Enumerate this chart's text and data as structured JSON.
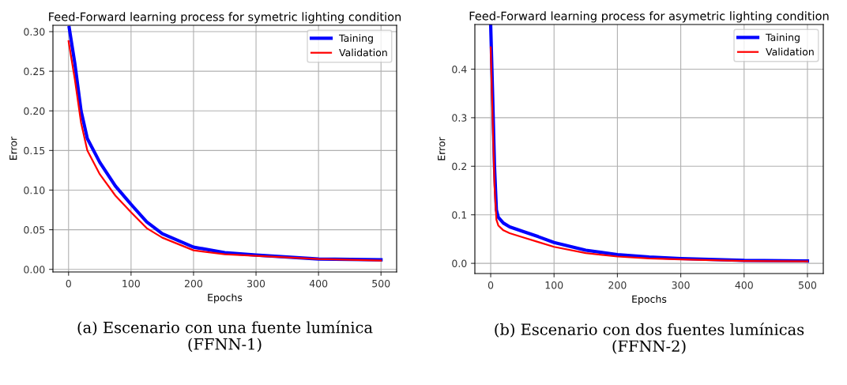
{
  "chart_data": [
    {
      "type": "line",
      "title": "Feed-Forward learning process for symetric lighting condition",
      "xlabel": "Epochs",
      "ylabel": "Error",
      "xlim": [
        -25,
        525
      ],
      "ylim": [
        -0.0033,
        0.308
      ],
      "xticks": [
        0,
        100,
        200,
        300,
        400,
        500
      ],
      "yticks": [
        {
          "value": 0,
          "label": "0.00"
        },
        {
          "value": 0.05,
          "label": "0.05"
        },
        {
          "value": 0.1,
          "label": "0.10"
        },
        {
          "value": 0.15,
          "label": "0.15"
        },
        {
          "value": 0.2,
          "label": "0.20"
        },
        {
          "value": 0.25,
          "label": "0.25"
        },
        {
          "value": 0.3,
          "label": "0.30"
        }
      ],
      "grid": true,
      "legend": "top right",
      "annotations": [
        "(a) Escenario con una fuente lumínica\n(FFNN-1)"
      ],
      "series": [
        {
          "name": "Taining",
          "color": "#0000ff",
          "x": [
            1,
            10,
            20,
            30,
            50,
            75,
            100,
            125,
            150,
            200,
            250,
            300,
            400,
            500
          ],
          "values": [
            0.305,
            0.26,
            0.2,
            0.165,
            0.135,
            0.105,
            0.082,
            0.06,
            0.045,
            0.028,
            0.021,
            0.018,
            0.013,
            0.012
          ]
        },
        {
          "name": "Validation",
          "color": "#ff0000",
          "x": [
            0,
            10,
            20,
            30,
            50,
            75,
            100,
            125,
            150,
            200,
            250,
            300,
            400,
            500
          ],
          "values": [
            0.288,
            0.24,
            0.185,
            0.15,
            0.12,
            0.093,
            0.072,
            0.052,
            0.04,
            0.024,
            0.019,
            0.017,
            0.013,
            0.011
          ]
        }
      ]
    },
    {
      "type": "line",
      "title": "Feed-Forward learning process for asymetric lighting condition",
      "xlabel": "Epochs",
      "ylabel": "Error",
      "xlim": [
        -25,
        525
      ],
      "ylim": [
        -0.021,
        0.492
      ],
      "xticks": [
        0,
        100,
        200,
        300,
        400,
        500
      ],
      "yticks": [
        {
          "value": 0,
          "label": "0.0"
        },
        0.1,
        0.2,
        0.3,
        0.4
      ],
      "grid": true,
      "legend": "top right",
      "annotations": [
        "(b) Escenario con dos fuentes lumínicas\n(FFNN-2)"
      ],
      "series": [
        {
          "name": "Taining",
          "color": "#0000ff",
          "x": [
            0,
            3,
            6,
            9,
            12,
            20,
            30,
            50,
            75,
            100,
            150,
            200,
            250,
            300,
            400,
            500
          ],
          "values": [
            0.49,
            0.35,
            0.2,
            0.11,
            0.095,
            0.083,
            0.075,
            0.066,
            0.055,
            0.043,
            0.027,
            0.018,
            0.013,
            0.01,
            0.006,
            0.005
          ]
        },
        {
          "name": "Validation",
          "color": "#ff0000",
          "x": [
            0,
            3,
            6,
            9,
            12,
            20,
            30,
            50,
            75,
            100,
            150,
            200,
            250,
            300,
            400,
            500
          ],
          "values": [
            0.445,
            0.3,
            0.16,
            0.09,
            0.078,
            0.068,
            0.062,
            0.054,
            0.044,
            0.034,
            0.021,
            0.014,
            0.01,
            0.008,
            0.005,
            0.004
          ]
        }
      ]
    }
  ]
}
